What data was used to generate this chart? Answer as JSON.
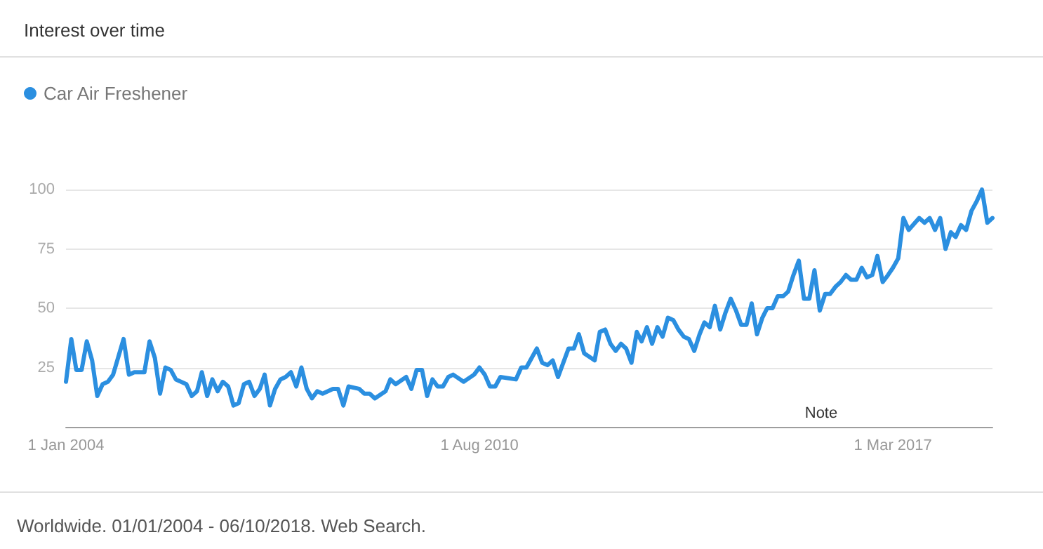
{
  "chart_data": {
    "type": "line",
    "title": "Interest over time",
    "xlim": [
      "2004-01",
      "2018-10"
    ],
    "xticks": [
      {
        "value": "2004-01",
        "label": "1 Jan 2004"
      },
      {
        "value": "2010-08",
        "label": "1 Aug 2010"
      },
      {
        "value": "2017-03",
        "label": "1 Mar 2017"
      }
    ],
    "ylim": [
      0,
      100
    ],
    "yticks": [
      25,
      50,
      75,
      100
    ],
    "grid": "y",
    "legend": "top left",
    "x": [
      "2004-01",
      "2004-02",
      "2004-03",
      "2004-04",
      "2004-05",
      "2004-06",
      "2004-07",
      "2004-08",
      "2004-09",
      "2004-10",
      "2004-12",
      "2005-01",
      "2005-02",
      "2005-04",
      "2005-05",
      "2005-06",
      "2005-07",
      "2005-08",
      "2005-09",
      "2005-10",
      "2005-12",
      "2006-01",
      "2006-02",
      "2006-03",
      "2006-04",
      "2006-05",
      "2006-06",
      "2006-07",
      "2006-08",
      "2006-09",
      "2006-10",
      "2006-11",
      "2006-12",
      "2007-01",
      "2007-02",
      "2007-03",
      "2007-04",
      "2007-05",
      "2007-06",
      "2007-07",
      "2007-08",
      "2007-09",
      "2007-10",
      "2007-11",
      "2007-12",
      "2008-01",
      "2008-02",
      "2008-04",
      "2008-05",
      "2008-06",
      "2008-07",
      "2008-09",
      "2008-10",
      "2008-11",
      "2008-12",
      "2009-02",
      "2009-03",
      "2009-04",
      "2009-06",
      "2009-07",
      "2009-08",
      "2009-09",
      "2009-10",
      "2009-11",
      "2009-12",
      "2010-01",
      "2010-02",
      "2010-03",
      "2010-05",
      "2010-07",
      "2010-08",
      "2010-09",
      "2010-10",
      "2010-11",
      "2010-12",
      "2011-03",
      "2011-04",
      "2011-05",
      "2011-07",
      "2011-08",
      "2011-09",
      "2011-10",
      "2011-11",
      "2012-01",
      "2012-02",
      "2012-03",
      "2012-04",
      "2012-06",
      "2012-07",
      "2012-08",
      "2012-09",
      "2012-10",
      "2012-11",
      "2012-12",
      "2013-01",
      "2013-02",
      "2013-03",
      "2013-04",
      "2013-05",
      "2013-06",
      "2013-07",
      "2013-08",
      "2013-09",
      "2013-10",
      "2013-11",
      "2013-12",
      "2014-01",
      "2014-02",
      "2014-03",
      "2014-04",
      "2014-05",
      "2014-06",
      "2014-07",
      "2014-08",
      "2014-09",
      "2014-10",
      "2014-11",
      "2014-12",
      "2015-01",
      "2015-02",
      "2015-03",
      "2015-04",
      "2015-05",
      "2015-06",
      "2015-07",
      "2015-08",
      "2015-09",
      "2015-10",
      "2015-11",
      "2015-12",
      "2016-01",
      "2016-02",
      "2016-03",
      "2016-04",
      "2016-05",
      "2016-06",
      "2016-07",
      "2016-08",
      "2016-09",
      "2016-10",
      "2016-11",
      "2016-12",
      "2017-01",
      "2017-02",
      "2017-03",
      "2017-04",
      "2017-05",
      "2017-06",
      "2017-08",
      "2017-09",
      "2017-10",
      "2017-11",
      "2017-12",
      "2018-01",
      "2018-02",
      "2018-03",
      "2018-04",
      "2018-05",
      "2018-06",
      "2018-07",
      "2018-08",
      "2018-09",
      "2018-10"
    ],
    "series": [
      {
        "name": "Car Air Freshener",
        "color": "#2b8fe0",
        "values": [
          19,
          37,
          24,
          24,
          36,
          28,
          13,
          18,
          19,
          22,
          37,
          22,
          23,
          23,
          36,
          29,
          14,
          25,
          24,
          20,
          18,
          13,
          15,
          23,
          13,
          20,
          15,
          19,
          17,
          9,
          10,
          18,
          19,
          13,
          16,
          22,
          9,
          16,
          20,
          21,
          23,
          17,
          25,
          16,
          12,
          15,
          14,
          16,
          16,
          9,
          17,
          16,
          14,
          14,
          12,
          15,
          20,
          18,
          21,
          16,
          24,
          24,
          13,
          20,
          17,
          17,
          21,
          22,
          19,
          22,
          25,
          22,
          17,
          17,
          21,
          20,
          25,
          25,
          33,
          27,
          26,
          28,
          21,
          33,
          33,
          39,
          31,
          28,
          40,
          41,
          35,
          32,
          35,
          33,
          27,
          40,
          36,
          42,
          35,
          42,
          38,
          46,
          45,
          41,
          38,
          37,
          32,
          39,
          44,
          42,
          51,
          41,
          48,
          54,
          49,
          43,
          43,
          52,
          39,
          46,
          50,
          50,
          55,
          55,
          57,
          64,
          70,
          54,
          54,
          66,
          49,
          56,
          56,
          59,
          61,
          64,
          62,
          62,
          67,
          63,
          64,
          72,
          61,
          64,
          67,
          71,
          88,
          83,
          88,
          86,
          88,
          83,
          88,
          75,
          82,
          80,
          85,
          83,
          91,
          95,
          100,
          86,
          88
        ]
      }
    ],
    "annotations": [
      "Note",
      "Worldwide. 01/01/2004 - 06/10/2018. Web Search."
    ]
  }
}
